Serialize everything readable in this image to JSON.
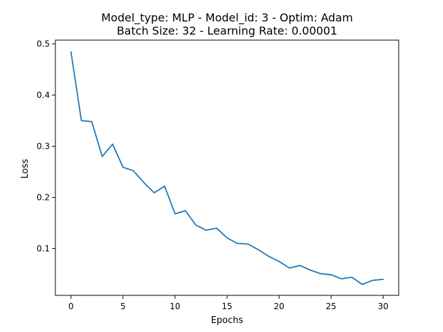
{
  "chart_data": {
    "type": "line",
    "title_lines": [
      "Model_type: MLP    -    Model_id: 3    -    Optim: Adam",
      "Batch Size: 32    -    Learning Rate: 0.00001"
    ],
    "xlabel": "Epochs",
    "ylabel": "Loss",
    "xlim": [
      -1.5,
      31.5
    ],
    "ylim": [
      0.0087,
      0.5073
    ],
    "xticks": [
      0,
      5,
      10,
      15,
      20,
      25,
      30
    ],
    "yticks": [
      0.1,
      0.2,
      0.3,
      0.4,
      0.5
    ],
    "xtick_labels": [
      "0",
      "5",
      "10",
      "15",
      "20",
      "25",
      "30"
    ],
    "ytick_labels": [
      "0.1",
      "0.2",
      "0.3",
      "0.4",
      "0.5"
    ],
    "grid": false,
    "line_color": "#1f77b4",
    "series": [
      {
        "x": [
          0,
          1,
          2,
          3,
          4,
          5,
          6,
          7,
          8,
          9,
          10,
          11,
          12,
          13,
          14,
          15,
          16,
          17,
          18,
          19,
          20,
          21,
          22,
          23,
          24,
          25,
          26,
          27,
          28,
          29,
          30
        ],
        "values": [
          0.484,
          0.35,
          0.348,
          0.28,
          0.304,
          0.259,
          0.252,
          0.229,
          0.209,
          0.222,
          0.168,
          0.174,
          0.146,
          0.136,
          0.14,
          0.121,
          0.11,
          0.109,
          0.098,
          0.085,
          0.075,
          0.062,
          0.067,
          0.058,
          0.051,
          0.049,
          0.041,
          0.044,
          0.03,
          0.038,
          0.04
        ]
      }
    ]
  }
}
